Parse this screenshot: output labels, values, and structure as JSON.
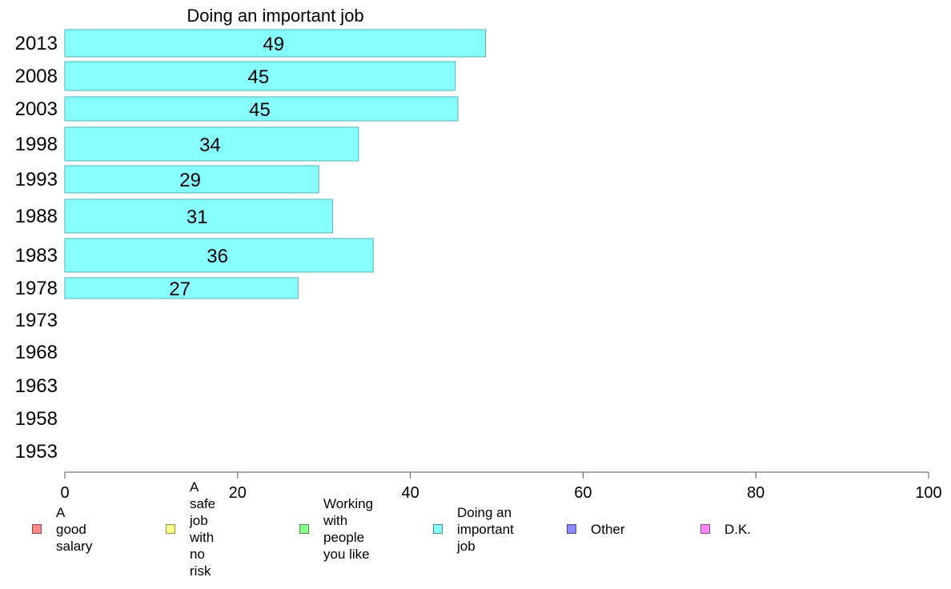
{
  "chart_data": {
    "type": "bar",
    "orientation": "horizontal",
    "title": "Doing an important job",
    "categories": [
      "2013",
      "2008",
      "2003",
      "1998",
      "1993",
      "1988",
      "1983",
      "1978",
      "1973",
      "1968",
      "1963",
      "1958",
      "1953"
    ],
    "series": [
      {
        "name": "Doing an important job",
        "values": [
          48.7,
          45.2,
          45.5,
          34.0,
          29.4,
          31.0,
          35.7,
          27.0,
          null,
          null,
          null,
          null,
          null
        ],
        "labels": [
          "49",
          "45",
          "45",
          "34",
          "29",
          "31",
          "36",
          "27",
          "",
          "",
          "",
          "",
          ""
        ]
      }
    ],
    "xlim": [
      0,
      100
    ],
    "xticks": [
      "0",
      "20",
      "40",
      "60",
      "80",
      "100"
    ],
    "grid": false,
    "legend_position": "bottom",
    "bar_color": "#88ffff",
    "bar_edge": "#55b3b3"
  },
  "legend": [
    {
      "label": "A good salary",
      "color": "#ff8888"
    },
    {
      "label": "A safe job\nwith no risk",
      "color": "#ffff88"
    },
    {
      "label": "Working with\npeople you like",
      "color": "#88ff88"
    },
    {
      "label": "Doing an\nimportant job",
      "color": "#88ffff"
    },
    {
      "label": "Other",
      "color": "#8888ff"
    },
    {
      "label": "D.K.",
      "color": "#ff88ff"
    }
  ]
}
